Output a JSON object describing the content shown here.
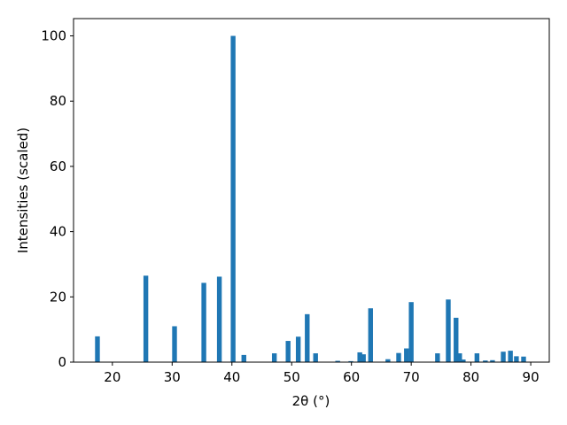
{
  "chart_data": {
    "type": "bar",
    "xlabel": "2θ (°)",
    "ylabel": "Intensities (scaled)",
    "x": [
      17.5,
      25.6,
      30.4,
      35.3,
      37.9,
      40.2,
      42.0,
      47.1,
      49.4,
      51.1,
      52.6,
      54.0,
      57.7,
      59.9,
      61.4,
      62.0,
      63.2,
      66.1,
      67.9,
      69.2,
      70.0,
      74.4,
      76.2,
      77.5,
      78.1,
      78.7,
      81.0,
      82.4,
      83.6,
      85.4,
      86.6,
      87.6,
      88.8
    ],
    "values": [
      7.9,
      26.5,
      11,
      24.3,
      26.2,
      100,
      2.2,
      2.7,
      6.5,
      7.8,
      14.7,
      2.7,
      0.4,
      0.3,
      3,
      2.4,
      16.5,
      0.9,
      2.8,
      4.2,
      18.4,
      2.7,
      19.2,
      13.6,
      2.7,
      0.8,
      2.7,
      0.5,
      0.6,
      3.2,
      3.5,
      1.8,
      1.7
    ],
    "color": "#1f77b4",
    "xlim": [
      13.5,
      93.1
    ],
    "xticks": [
      20,
      30,
      40,
      50,
      60,
      70,
      80,
      90
    ],
    "ylim": [
      0,
      105.3
    ],
    "yticks": [
      0,
      20,
      40,
      60,
      80,
      100
    ]
  }
}
